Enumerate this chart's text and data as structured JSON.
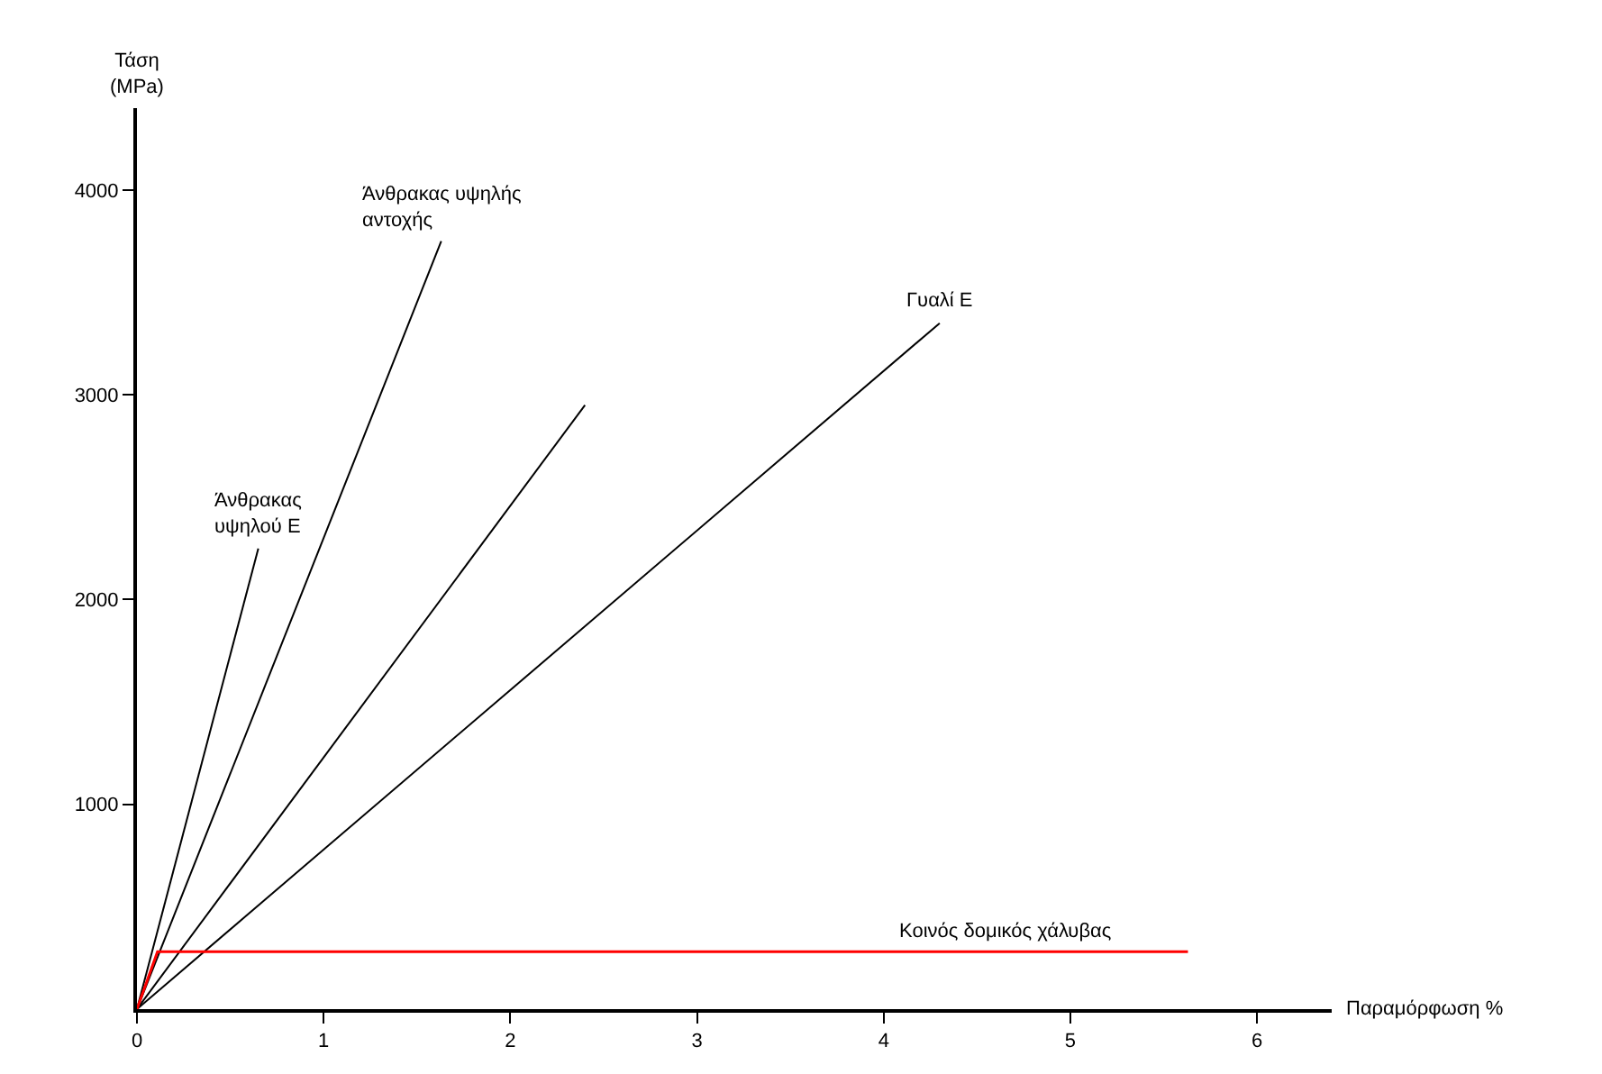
{
  "chart_data": {
    "type": "line",
    "xlabel": "Παραμόρφωση %",
    "ylabel": "Τάση\n(MPa)",
    "xlim": [
      0,
      6.4
    ],
    "ylim": [
      0,
      4400
    ],
    "xticks": [
      0,
      1,
      2,
      3,
      4,
      5,
      6
    ],
    "yticks": [
      1000,
      2000,
      3000,
      4000
    ],
    "legend": false,
    "marker": "none",
    "line_style": "solid",
    "series": [
      {
        "name": "Άνθρακας\nυψηλού Ε",
        "color": "#000000",
        "x": [
          0,
          0.65
        ],
        "values": [
          0,
          2250
        ]
      },
      {
        "name": "Άνθρακας υψηλής\nαντοχής",
        "color": "#000000",
        "x": [
          0,
          1.63
        ],
        "values": [
          0,
          3750
        ]
      },
      {
        "color": "#000000",
        "x": [
          0,
          2.4
        ],
        "values": [
          0,
          2950
        ]
      },
      {
        "name": "Γυαλί Ε",
        "color": "#000000",
        "x": [
          0,
          4.3
        ],
        "values": [
          0,
          3350
        ]
      },
      {
        "name": "Κοινός δομικός χάλυβας",
        "color": "#ff0000",
        "x": [
          0,
          0.11,
          5.63
        ],
        "values": [
          0,
          280,
          280
        ]
      }
    ]
  }
}
